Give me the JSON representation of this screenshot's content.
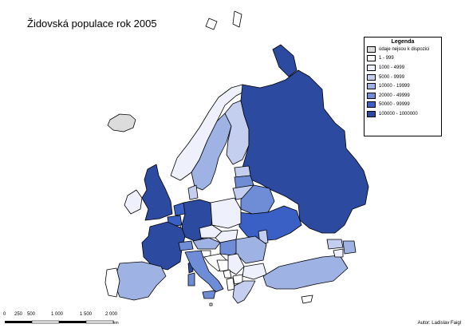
{
  "title": "Židovská populace rok 2005",
  "legend": {
    "title": "Legenda",
    "items": [
      {
        "label": "údaje nejsou k dispozici",
        "color": "#dcdcdc"
      },
      {
        "label": "1 - 999",
        "color": "#ffffff"
      },
      {
        "label": "1000 - 4999",
        "color": "#eef0fb"
      },
      {
        "label": "5000 - 9999",
        "color": "#c4cff0"
      },
      {
        "label": "10000 - 19999",
        "color": "#9fb2e4"
      },
      {
        "label": "20000 - 49999",
        "color": "#6f8dd6"
      },
      {
        "label": "50000 - 99999",
        "color": "#3a60c6"
      },
      {
        "label": "100000 - 1000000",
        "color": "#2b4aa0"
      }
    ]
  },
  "scale": {
    "labels": [
      "0",
      "250",
      "500",
      "1 000",
      "1 500",
      "2 000"
    ],
    "unit": "km"
  },
  "author": "Autor: Ladislav Faigl",
  "country_classes": {
    "iceland": 0,
    "norway": 2,
    "sweden": 4,
    "finland": 3,
    "estonia": 3,
    "latvia": 5,
    "lithuania": 3,
    "belarus": 5,
    "ukraine": 6,
    "russia": 7,
    "moldova": 3,
    "ireland": 2,
    "united_kingdom": 7,
    "france": 7,
    "belgium": 6,
    "netherlands": 6,
    "luxembourg": 2,
    "germany": 7,
    "denmark": 3,
    "poland": 2,
    "czechia": 2,
    "slovakia": 2,
    "austria": 4,
    "switzerland": 5,
    "hungary": 5,
    "slovenia": 1,
    "croatia": 1,
    "bosnia": 1,
    "serbia": 2,
    "montenegro": 1,
    "albania": 1,
    "macedonia": 1,
    "romania": 4,
    "bulgaria": 2,
    "greece": 3,
    "turkey": 4,
    "cyprus": 1,
    "georgia": 3,
    "armenia": 2,
    "azerbaijan": 4,
    "spain": 4,
    "portugal": 1,
    "italy": 5,
    "sardinia": 5,
    "sicily": 5,
    "corsica": 7,
    "malta": 1,
    "svalbard": 1,
    "novaya_zemlya": 7
  }
}
